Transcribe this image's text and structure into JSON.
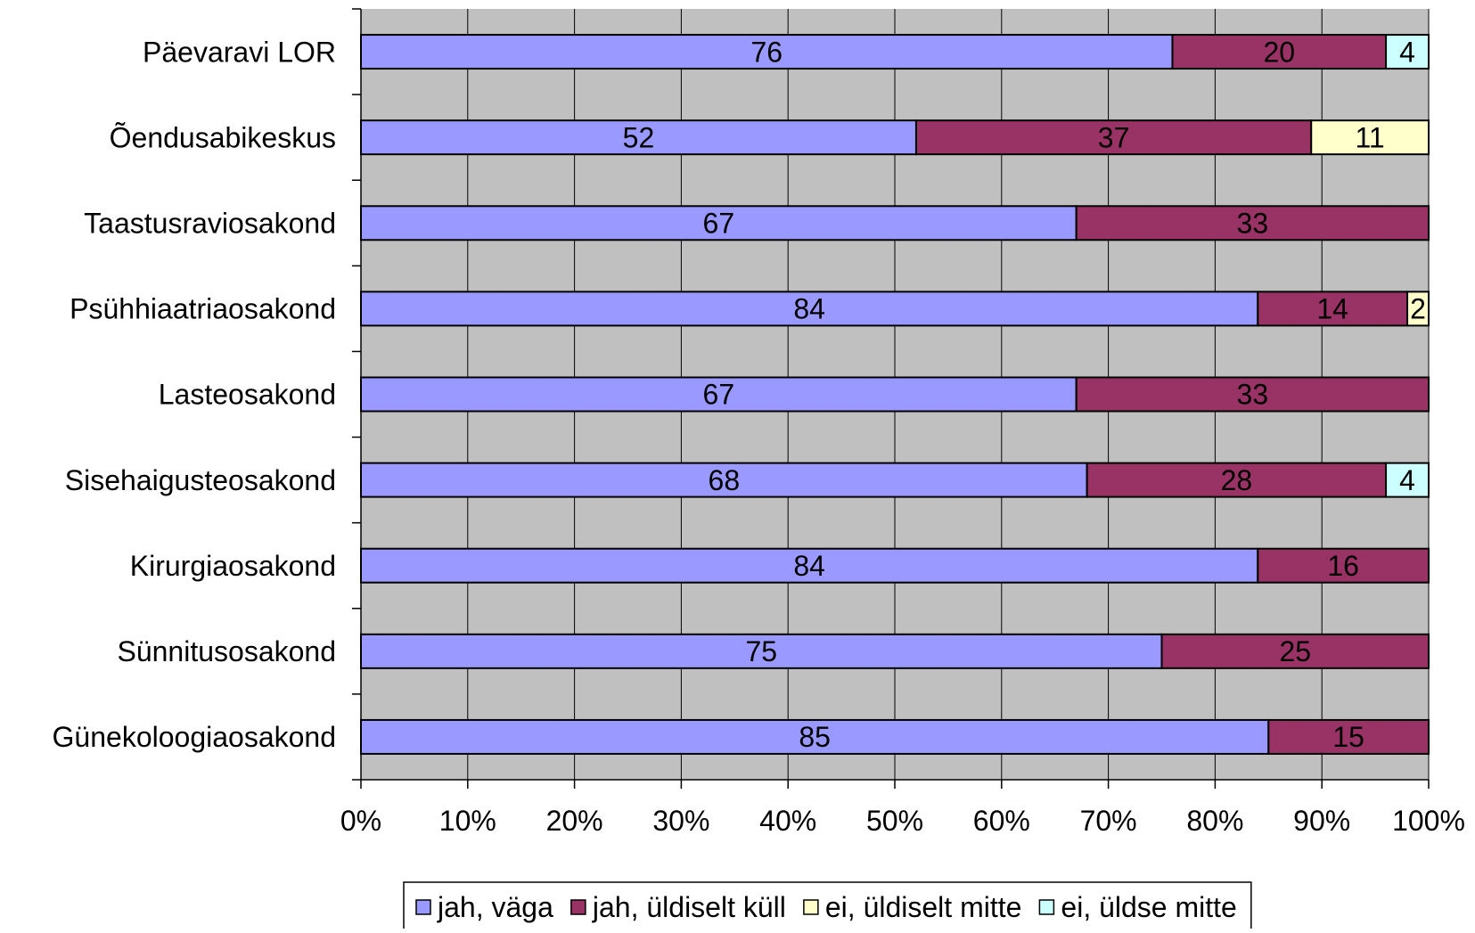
{
  "chart_data": {
    "type": "bar",
    "orientation": "horizontal",
    "stacked": "percent",
    "categories": [
      "Päevaravi LOR",
      "Õendusabikeskus",
      "Taastusraviosakond",
      "Psühhiaatriaosakond",
      "Lasteosakond",
      "Sisehaigusteosakond",
      "Kirurgiaosakond",
      "Sünnitusosakond",
      "Günekoloogiaosakond"
    ],
    "series": [
      {
        "name": "jah, väga",
        "color": "#9999ff",
        "values": [
          76,
          52,
          67,
          84,
          67,
          68,
          84,
          75,
          85
        ]
      },
      {
        "name": "jah, üldiselt küll",
        "color": "#993366",
        "values": [
          20,
          37,
          33,
          14,
          33,
          28,
          16,
          25,
          15
        ]
      },
      {
        "name": "ei, üldiselt mitte",
        "color": "#ffffcc",
        "values": [
          0,
          11,
          0,
          2,
          0,
          0,
          0,
          0,
          0
        ]
      },
      {
        "name": "ei, üldse mitte",
        "color": "#ccffff",
        "values": [
          4,
          0,
          0,
          0,
          0,
          4,
          0,
          0,
          0
        ]
      }
    ],
    "xlim": [
      0,
      100
    ],
    "x_ticks": [
      "0%",
      "10%",
      "20%",
      "30%",
      "40%",
      "50%",
      "60%",
      "70%",
      "80%",
      "90%",
      "100%"
    ],
    "title": "",
    "xlabel": "",
    "ylabel": "",
    "grid": true,
    "plot_background": "#c0c0c0",
    "legend_position": "bottom"
  }
}
